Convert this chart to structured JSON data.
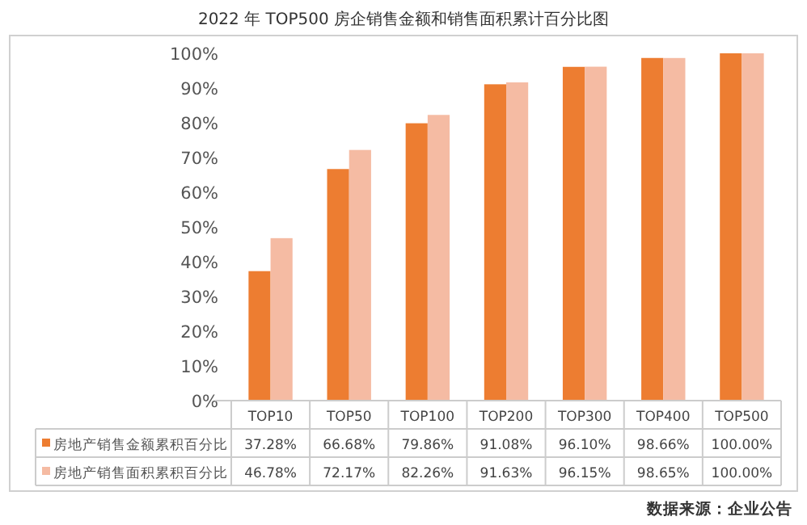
{
  "chart_data": {
    "type": "bar",
    "title": "2022 年 TOP500 房企销售金额和销售面积累计百分比图",
    "categories": [
      "TOP10",
      "TOP50",
      "TOP100",
      "TOP200",
      "TOP300",
      "TOP400",
      "TOP500"
    ],
    "series": [
      {
        "name": "房地产销售金额累积百分比",
        "color": "#ed7d31",
        "values": [
          37.28,
          66.68,
          79.86,
          91.08,
          96.1,
          98.66,
          100.0
        ],
        "value_labels": [
          "37.28%",
          "66.68%",
          "79.86%",
          "91.08%",
          "96.10%",
          "98.66%",
          "100.00%"
        ]
      },
      {
        "name": "房地产销售面积累积百分比",
        "color": "#f5bba3",
        "values": [
          46.78,
          72.17,
          82.26,
          91.63,
          96.15,
          98.65,
          100.0
        ],
        "value_labels": [
          "46.78%",
          "72.17%",
          "82.26%",
          "91.63%",
          "96.15%",
          "98.65%",
          "100.00%"
        ]
      }
    ],
    "ylim": [
      0,
      100
    ],
    "yticks": [
      {
        "value": 0,
        "label": "0%"
      },
      {
        "value": 10,
        "label": "10%"
      },
      {
        "value": 20,
        "label": "20%"
      },
      {
        "value": 30,
        "label": "30%"
      },
      {
        "value": 40,
        "label": "40%"
      },
      {
        "value": 50,
        "label": "50%"
      },
      {
        "value": 60,
        "label": "60%"
      },
      {
        "value": 70,
        "label": "70%"
      },
      {
        "value": 80,
        "label": "80%"
      },
      {
        "value": 90,
        "label": "90%"
      },
      {
        "value": 100,
        "label": "100%"
      }
    ],
    "grid": false,
    "legend": "bottom",
    "annotations": [
      "数据来源：企业公告"
    ]
  }
}
